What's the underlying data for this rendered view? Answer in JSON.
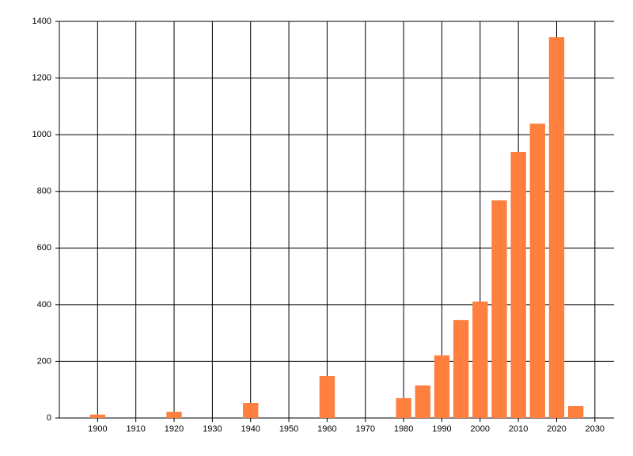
{
  "chart_data": {
    "type": "bar",
    "x": [
      1900,
      1920,
      1940,
      1960,
      1980,
      1985,
      1990,
      1995,
      2000,
      2005,
      2010,
      2015,
      2020,
      2025
    ],
    "values": [
      12,
      22,
      53,
      148,
      70,
      115,
      221,
      346,
      411,
      768,
      939,
      1039,
      1344,
      42
    ],
    "color": "#ff7f3f",
    "xlim": [
      1890,
      2035
    ],
    "xticks": [
      1900,
      1910,
      1920,
      1930,
      1940,
      1950,
      1960,
      1970,
      1980,
      1990,
      2000,
      2010,
      2020,
      2030
    ],
    "ylim": [
      0,
      1400
    ],
    "yticks": [
      0,
      200,
      400,
      600,
      800,
      1000,
      1200,
      1400
    ],
    "grid": true
  }
}
